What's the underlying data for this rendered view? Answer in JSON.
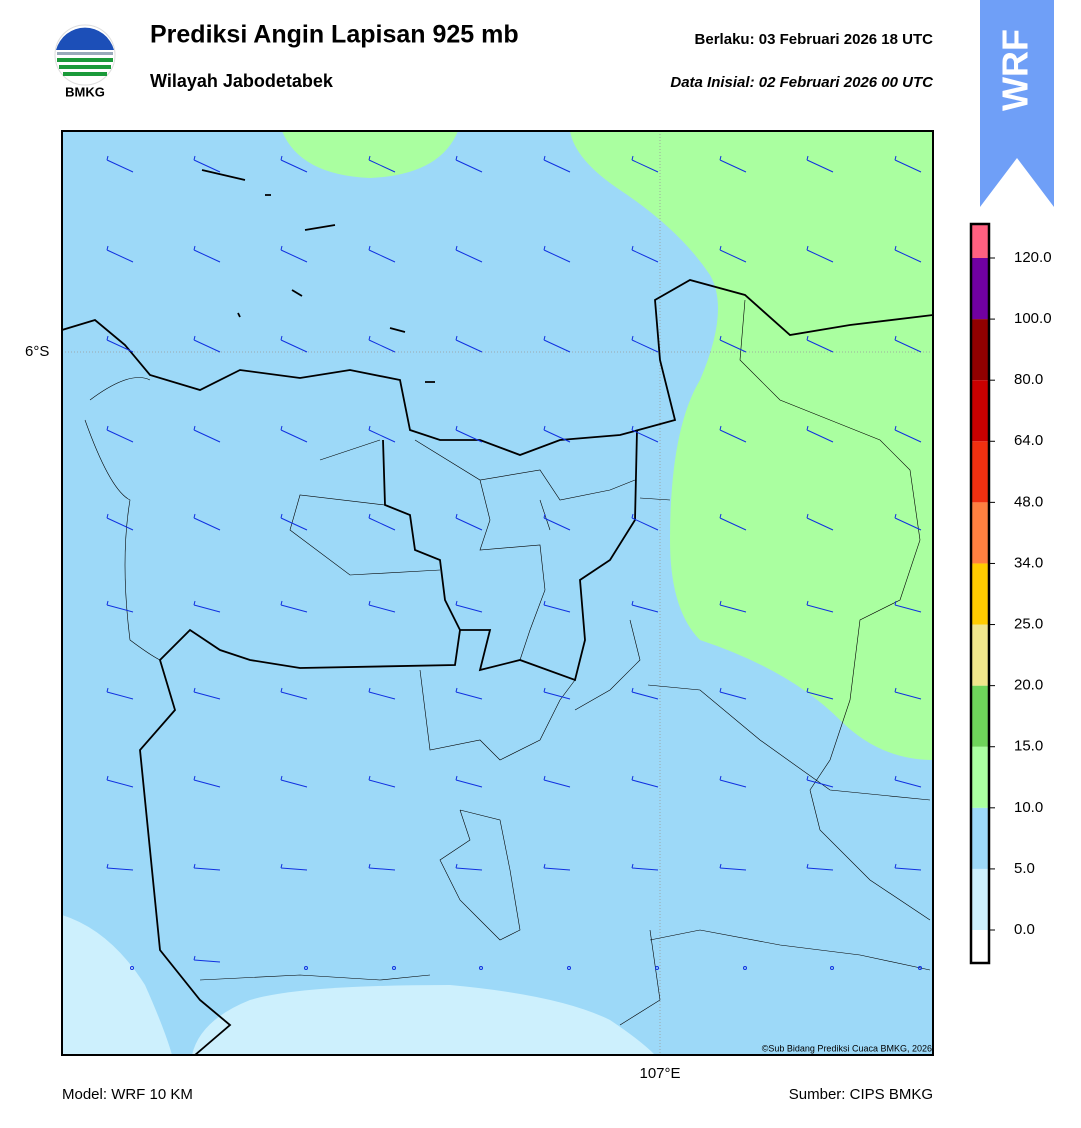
{
  "header": {
    "logo_text": "BMKG",
    "title": "Prediksi Angin Lapisan 925 mb",
    "subtitle": "Wilayah Jabodetabek",
    "valid": "Berlaku:  03 Februari 2026 18 UTC",
    "initial": "Data Inisial:  02 Februari 2026 00 UTC",
    "badge": "WRF"
  },
  "map": {
    "lat_label": "6°S",
    "lon_label": "107°E",
    "copyright": "©Sub Bidang Prediksi Cuaca BMKG, 2026"
  },
  "colorbar": {
    "levels": [
      {
        "label": "0.0",
        "color": "#ffffff"
      },
      {
        "label": "5.0",
        "color": "#cdf0fd"
      },
      {
        "label": "10.0",
        "color": "#9dd9f8"
      },
      {
        "label": "15.0",
        "color": "#aaffa0"
      },
      {
        "label": "20.0",
        "color": "#6fd45a"
      },
      {
        "label": "25.0",
        "color": "#f0e68c"
      },
      {
        "label": "34.0",
        "color": "#ffcc00"
      },
      {
        "label": "48.0",
        "color": "#ff8040"
      },
      {
        "label": "64.0",
        "color": "#f03010"
      },
      {
        "label": "80.0",
        "color": "#c80000"
      },
      {
        "label": "100.0",
        "color": "#900000"
      },
      {
        "label": "120.0",
        "color": "#7000a0"
      }
    ],
    "top_color": "#ff6080"
  },
  "footer": {
    "model": "Model: WRF 10 KM",
    "source": "Sumber: CIPS BMKG"
  }
}
